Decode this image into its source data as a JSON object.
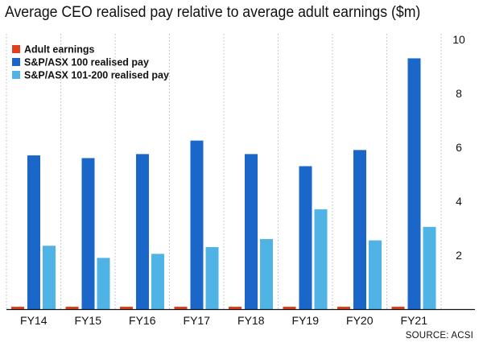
{
  "chart_data": {
    "type": "bar",
    "title": "Average CEO realised pay relative to average adult earnings ($m)",
    "source": "SOURCE: ACSI",
    "categories": [
      "FY14",
      "FY15",
      "FY16",
      "FY17",
      "FY18",
      "FY19",
      "FY20",
      "FY21"
    ],
    "yticks": [
      "2",
      "4",
      "6",
      "8",
      "10"
    ],
    "ylim": [
      0,
      10
    ],
    "grid": "vertical-dashed",
    "legend_position": "top-left",
    "series": [
      {
        "name": "Adult earnings",
        "color": "#e0401c",
        "values": [
          0.08,
          0.08,
          0.08,
          0.08,
          0.09,
          0.09,
          0.09,
          0.09
        ]
      },
      {
        "name": "S&P/ASX 100 realised pay",
        "color": "#1a67c9",
        "values": [
          5.7,
          5.6,
          5.75,
          6.25,
          5.75,
          5.3,
          5.9,
          9.3
        ]
      },
      {
        "name": "S&P/ASX 101-200 realised pay",
        "color": "#4fb3e6",
        "values": [
          2.35,
          1.9,
          2.05,
          2.3,
          2.6,
          3.7,
          2.55,
          3.05
        ]
      }
    ]
  }
}
